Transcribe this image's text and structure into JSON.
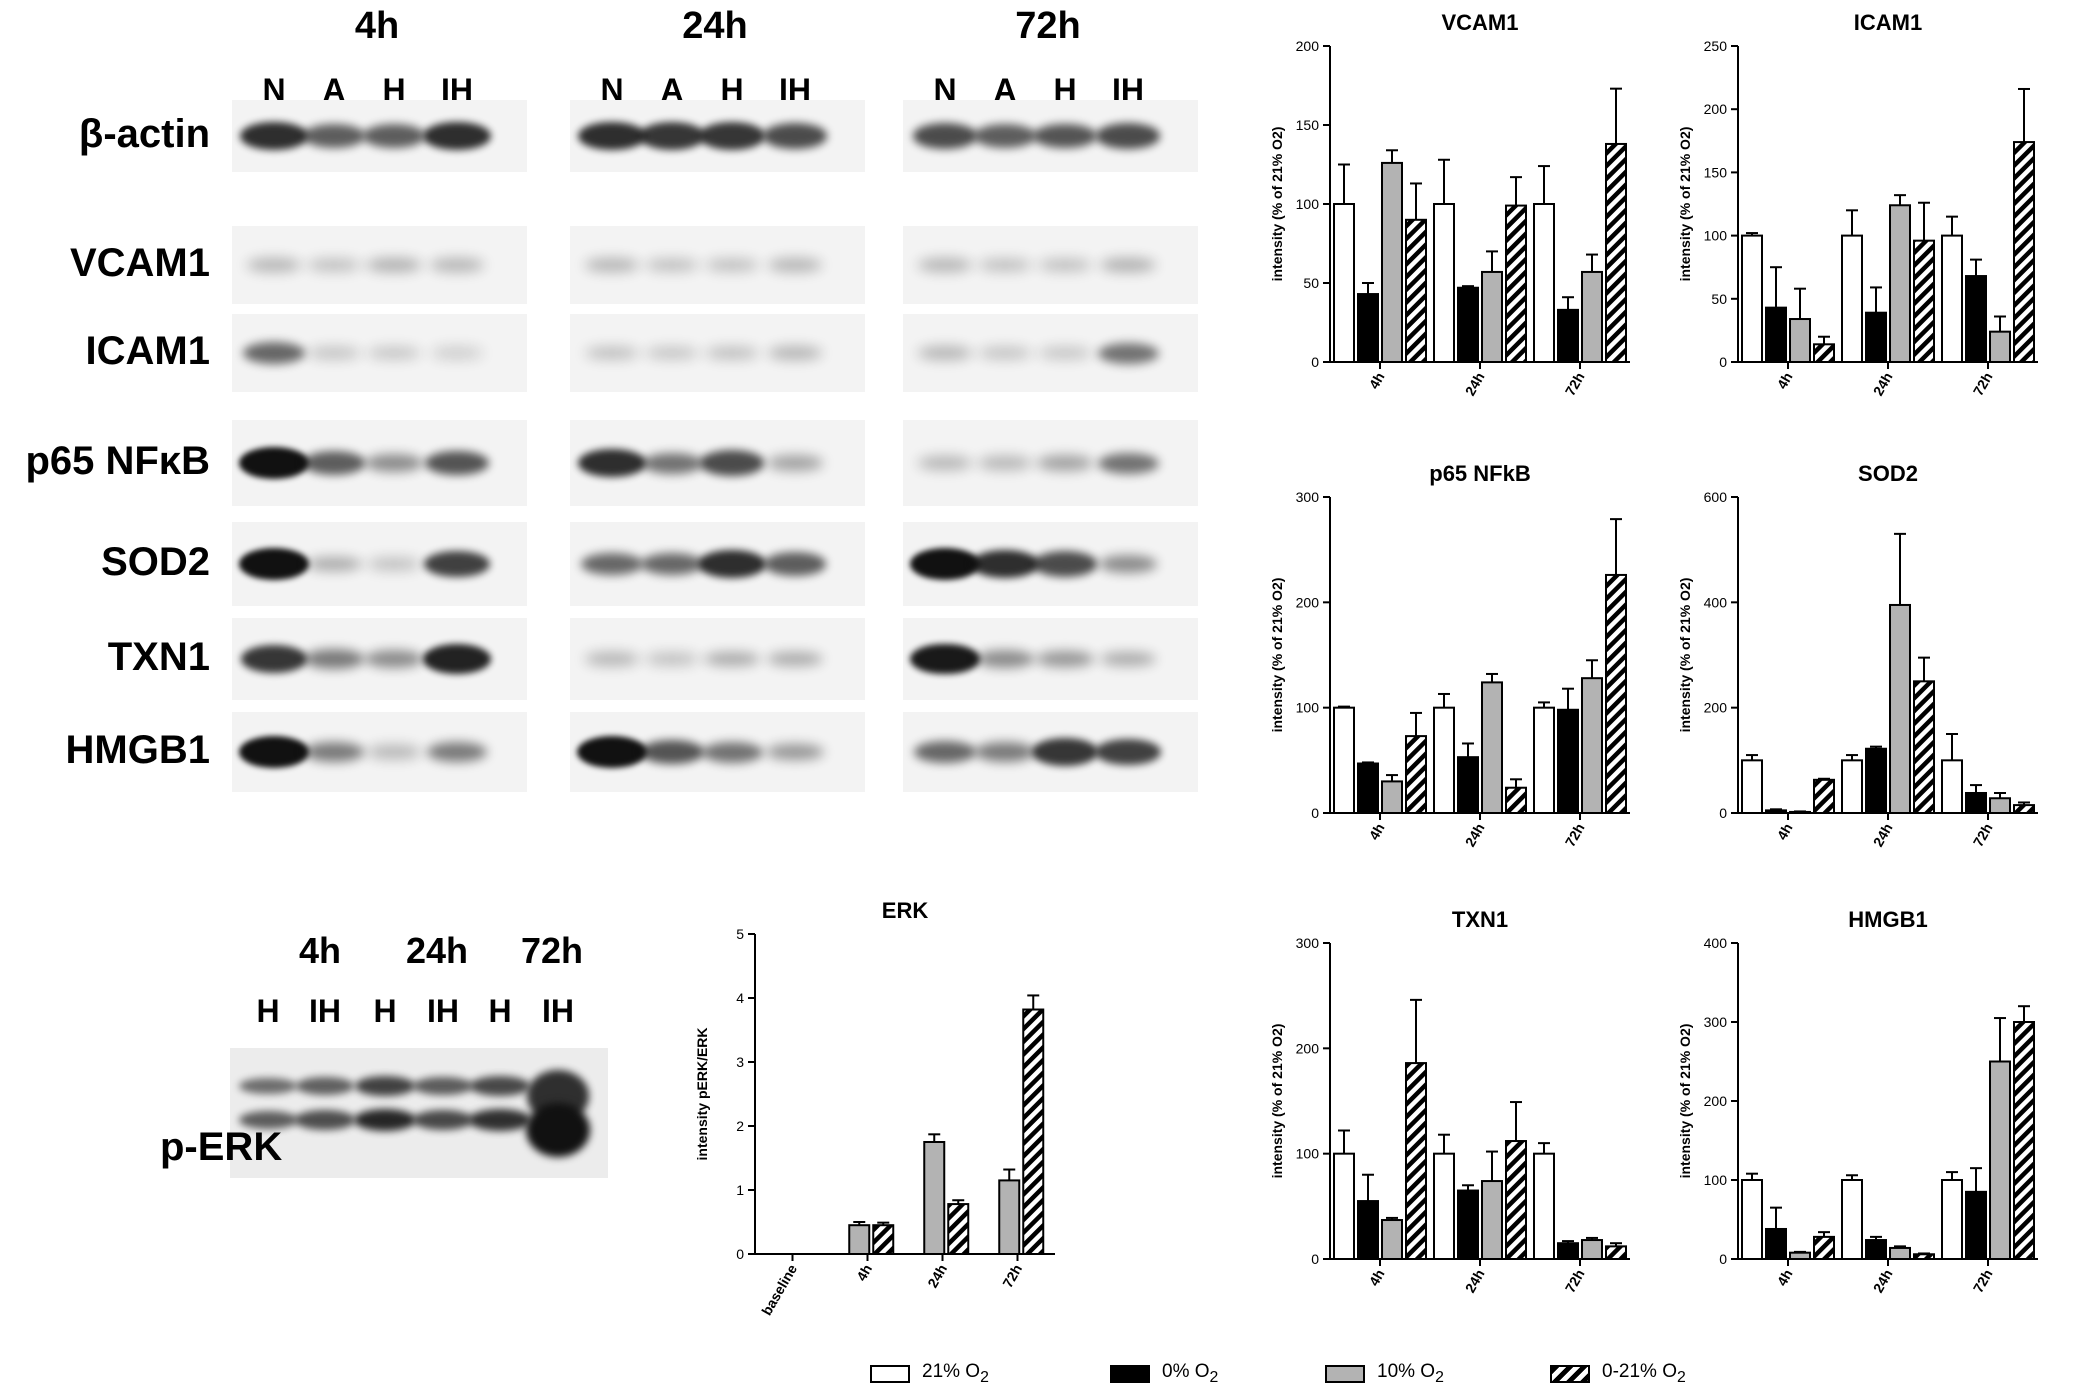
{
  "western_blot": {
    "timepoints": [
      "4h",
      "24h",
      "72h"
    ],
    "lanes": [
      "N",
      "A",
      "H",
      "IH"
    ],
    "rows": [
      "β-actin",
      "VCAM1",
      "ICAM1",
      "p65 NFκB",
      "SOD2",
      "TXN1",
      "HMGB1"
    ]
  },
  "perk_blot": {
    "timepoints": [
      "4h",
      "24h",
      "72h"
    ],
    "lanes": [
      "H",
      "IH",
      "H",
      "IH",
      "H",
      "IH"
    ],
    "row_label": "p-ERK"
  },
  "legend": [
    {
      "label": "21% O",
      "sub": "2",
      "fill": "#ffffff"
    },
    {
      "label": "0% O",
      "sub": "2",
      "fill": "#000000"
    },
    {
      "label": "10% O",
      "sub": "2",
      "fill": "#b3b3b3"
    },
    {
      "label": "0-21% O",
      "sub": "2",
      "fill": "hatch"
    }
  ],
  "colors": {
    "c21": "#ffffff",
    "c0": "#000000",
    "c10": "#b3b3b3",
    "hatch": "#000000"
  },
  "chart_data": [
    {
      "type": "bar",
      "title": "VCAM1",
      "ylabel": "intensity  (% of 21% O2)",
      "ylim": [
        0,
        200
      ],
      "yticks": [
        0,
        50,
        100,
        150,
        200
      ],
      "categories": [
        "4h",
        "24h",
        "72h"
      ],
      "series": [
        {
          "name": "21% O2",
          "values": [
            100,
            100,
            100
          ],
          "errors": [
            25,
            28,
            24
          ]
        },
        {
          "name": "0% O2",
          "values": [
            43,
            47,
            33
          ],
          "errors": [
            7,
            1,
            8
          ]
        },
        {
          "name": "10% O2",
          "values": [
            126,
            57,
            57
          ],
          "errors": [
            8,
            13,
            11
          ]
        },
        {
          "name": "0-21% O2",
          "values": [
            90,
            99,
            138
          ],
          "errors": [
            23,
            18,
            35
          ]
        }
      ]
    },
    {
      "type": "bar",
      "title": "ICAM1",
      "ylabel": "intensity  (% of 21% O2)",
      "ylim": [
        0,
        250
      ],
      "yticks": [
        0,
        50,
        100,
        150,
        200,
        250
      ],
      "categories": [
        "4h",
        "24h",
        "72h"
      ],
      "series": [
        {
          "name": "21% O2",
          "values": [
            100,
            100,
            100
          ],
          "errors": [
            2,
            20,
            15
          ]
        },
        {
          "name": "0% O2",
          "values": [
            43,
            39,
            68
          ],
          "errors": [
            32,
            20,
            13
          ]
        },
        {
          "name": "10% O2",
          "values": [
            34,
            124,
            24
          ],
          "errors": [
            24,
            8,
            12
          ]
        },
        {
          "name": "0-21% O2",
          "values": [
            14,
            96,
            174
          ],
          "errors": [
            6,
            30,
            42
          ]
        }
      ]
    },
    {
      "type": "bar",
      "title": "p65 NFkB",
      "ylabel": "intensity  (% of 21% O2)",
      "ylim": [
        0,
        300
      ],
      "yticks": [
        0,
        100,
        200,
        300
      ],
      "categories": [
        "4h",
        "24h",
        "72h"
      ],
      "series": [
        {
          "name": "21% O2",
          "values": [
            100,
            100,
            100
          ],
          "errors": [
            1,
            13,
            5
          ]
        },
        {
          "name": "0% O2",
          "values": [
            47,
            53,
            98
          ],
          "errors": [
            1,
            13,
            20
          ]
        },
        {
          "name": "10% O2",
          "values": [
            30,
            124,
            128
          ],
          "errors": [
            6,
            8,
            17
          ]
        },
        {
          "name": "0-21% O2",
          "values": [
            73,
            24,
            226
          ],
          "errors": [
            22,
            8,
            53
          ]
        }
      ]
    },
    {
      "type": "bar",
      "title": "SOD2",
      "ylabel": "intensity  (% of 21% O2)",
      "ylim": [
        0,
        600
      ],
      "yticks": [
        0,
        200,
        400,
        600
      ],
      "categories": [
        "4h",
        "24h",
        "72h"
      ],
      "series": [
        {
          "name": "21% O2",
          "values": [
            100,
            100,
            100
          ],
          "errors": [
            10,
            10,
            50
          ]
        },
        {
          "name": "0% O2",
          "values": [
            5,
            122,
            38
          ],
          "errors": [
            2,
            4,
            15
          ]
        },
        {
          "name": "10% O2",
          "values": [
            2,
            395,
            28
          ],
          "errors": [
            1,
            135,
            10
          ]
        },
        {
          "name": "0-21% O2",
          "values": [
            63,
            250,
            15
          ],
          "errors": [
            2,
            45,
            5
          ]
        }
      ]
    },
    {
      "type": "bar",
      "title": "TXN1",
      "ylabel": "intensity  (% of 21% O2)",
      "ylim": [
        0,
        300
      ],
      "yticks": [
        0,
        100,
        200,
        300
      ],
      "categories": [
        "4h",
        "24h",
        "72h"
      ],
      "series": [
        {
          "name": "21% O2",
          "values": [
            100,
            100,
            100
          ],
          "errors": [
            22,
            18,
            10
          ]
        },
        {
          "name": "0% O2",
          "values": [
            55,
            65,
            15
          ],
          "errors": [
            25,
            5,
            2
          ]
        },
        {
          "name": "10% O2",
          "values": [
            37,
            74,
            18
          ],
          "errors": [
            2,
            28,
            2
          ]
        },
        {
          "name": "0-21% O2",
          "values": [
            186,
            112,
            12
          ],
          "errors": [
            60,
            37,
            3
          ]
        }
      ]
    },
    {
      "type": "bar",
      "title": "HMGB1",
      "ylabel": "intensity  (% of 21% O2)",
      "ylim": [
        0,
        400
      ],
      "yticks": [
        0,
        100,
        200,
        300,
        400
      ],
      "categories": [
        "4h",
        "24h",
        "72h"
      ],
      "series": [
        {
          "name": "21% O2",
          "values": [
            100,
            100,
            100
          ],
          "errors": [
            8,
            6,
            10
          ]
        },
        {
          "name": "0% O2",
          "values": [
            38,
            24,
            85
          ],
          "errors": [
            27,
            4,
            30
          ]
        },
        {
          "name": "10% O2",
          "values": [
            8,
            14,
            250
          ],
          "errors": [
            1,
            2,
            55
          ]
        },
        {
          "name": "0-21% O2",
          "values": [
            28,
            6,
            300
          ],
          "errors": [
            6,
            1,
            20
          ]
        }
      ]
    },
    {
      "type": "bar",
      "title": "ERK",
      "ylabel": "intensity pERK/ERK",
      "ylim": [
        0,
        5
      ],
      "yticks": [
        0,
        1,
        2,
        3,
        4,
        5
      ],
      "categories": [
        "baseline",
        "4h",
        "24h",
        "72h"
      ],
      "series": [
        {
          "name": "10% O2",
          "values": [
            0,
            0.45,
            1.75,
            1.15
          ],
          "errors": [
            0,
            0.05,
            0.12,
            0.17
          ]
        },
        {
          "name": "0-21% O2",
          "values": [
            0,
            0.45,
            0.78,
            3.82
          ],
          "errors": [
            0,
            0.04,
            0.06,
            0.22
          ]
        }
      ]
    }
  ]
}
